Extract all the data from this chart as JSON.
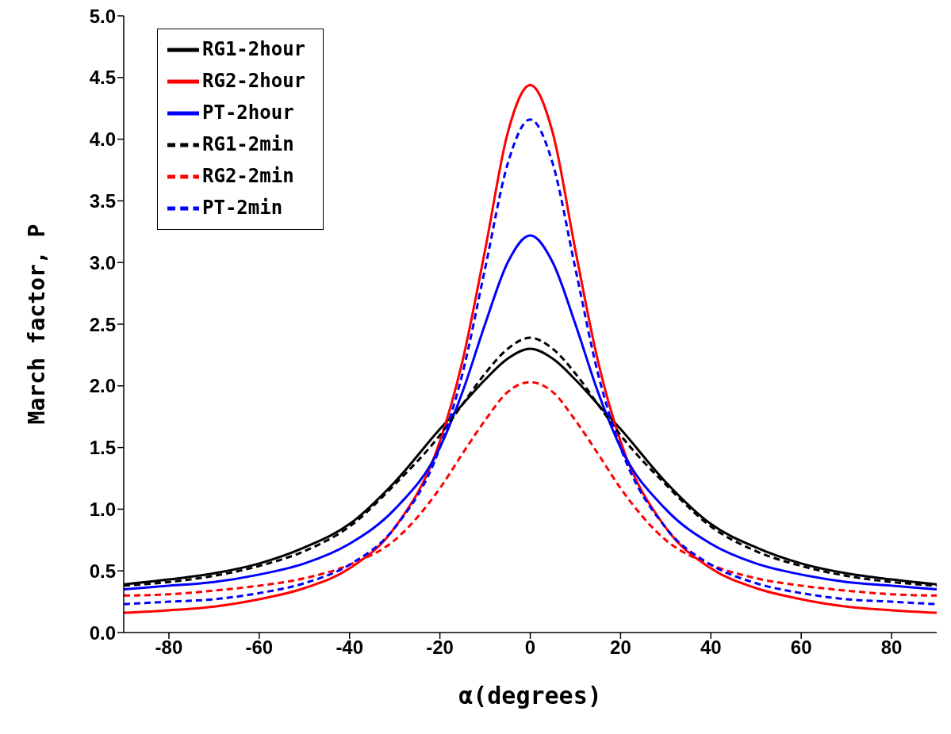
{
  "chart_data": {
    "type": "line",
    "xlabel": "α(degrees)",
    "ylabel": "March factor, P",
    "x": [
      -90,
      -80,
      -70,
      -60,
      -50,
      -40,
      -30,
      -20,
      -15,
      -10,
      -5,
      0,
      5,
      10,
      15,
      20,
      30,
      40,
      50,
      60,
      70,
      80,
      90
    ],
    "series": [
      {
        "name": "RG1-2hour",
        "color": "#000000",
        "line_style": "solid",
        "values": [
          0.39,
          0.43,
          0.48,
          0.56,
          0.69,
          0.88,
          1.22,
          1.65,
          1.85,
          2.05,
          2.22,
          2.3,
          2.22,
          2.05,
          1.85,
          1.65,
          1.22,
          0.88,
          0.69,
          0.56,
          0.48,
          0.43,
          0.39
        ]
      },
      {
        "name": "RG2-2hour",
        "color": "#ff0000",
        "line_style": "solid",
        "values": [
          0.16,
          0.18,
          0.21,
          0.27,
          0.36,
          0.52,
          0.85,
          1.55,
          2.2,
          3.1,
          4.05,
          4.44,
          4.05,
          3.1,
          2.2,
          1.55,
          0.85,
          0.52,
          0.36,
          0.27,
          0.21,
          0.18,
          0.16
        ]
      },
      {
        "name": "PT-2hour",
        "color": "#0000ff",
        "line_style": "solid",
        "values": [
          0.35,
          0.38,
          0.41,
          0.47,
          0.56,
          0.72,
          1.0,
          1.5,
          1.95,
          2.5,
          3.0,
          3.22,
          3.0,
          2.5,
          1.95,
          1.5,
          1.0,
          0.72,
          0.56,
          0.47,
          0.41,
          0.38,
          0.35
        ]
      },
      {
        "name": "RG1-2min",
        "color": "#000000",
        "line_style": "dashed",
        "values": [
          0.38,
          0.41,
          0.46,
          0.54,
          0.66,
          0.86,
          1.2,
          1.6,
          1.85,
          2.1,
          2.3,
          2.39,
          2.3,
          2.1,
          1.85,
          1.6,
          1.2,
          0.86,
          0.66,
          0.54,
          0.46,
          0.41,
          0.38
        ]
      },
      {
        "name": "RG2-2min",
        "color": "#ff0000",
        "line_style": "dashed",
        "values": [
          0.3,
          0.31,
          0.34,
          0.38,
          0.44,
          0.55,
          0.75,
          1.17,
          1.45,
          1.72,
          1.95,
          2.03,
          1.95,
          1.72,
          1.45,
          1.17,
          0.75,
          0.55,
          0.44,
          0.38,
          0.34,
          0.31,
          0.3
        ]
      },
      {
        "name": "PT-2min",
        "color": "#0000ff",
        "line_style": "dashed",
        "values": [
          0.23,
          0.25,
          0.27,
          0.32,
          0.4,
          0.55,
          0.85,
          1.5,
          2.1,
          2.95,
          3.8,
          4.16,
          3.8,
          2.95,
          2.1,
          1.5,
          0.85,
          0.55,
          0.4,
          0.32,
          0.27,
          0.25,
          0.23
        ]
      }
    ],
    "xlim": [
      -90,
      90
    ],
    "xticks": [
      -80,
      -60,
      -40,
      -20,
      0,
      20,
      40,
      60,
      80
    ],
    "ylim": [
      0,
      5
    ],
    "yticks": [
      {
        "value": 0,
        "label": "0.0"
      },
      {
        "value": 0.5,
        "label": "0.5"
      },
      {
        "value": 1,
        "label": "1.0"
      },
      {
        "value": 1.5,
        "label": "1.5"
      },
      {
        "value": 2,
        "label": "2.0"
      },
      {
        "value": 2.5,
        "label": "2.5"
      },
      {
        "value": 3,
        "label": "3.0"
      },
      {
        "value": 3.5,
        "label": "3.5"
      },
      {
        "value": 4,
        "label": "4.0"
      },
      {
        "value": 4.5,
        "label": "4.5"
      },
      {
        "value": 5,
        "label": "5.0"
      }
    ],
    "legend": "top left",
    "grid": false,
    "marker": "none"
  }
}
